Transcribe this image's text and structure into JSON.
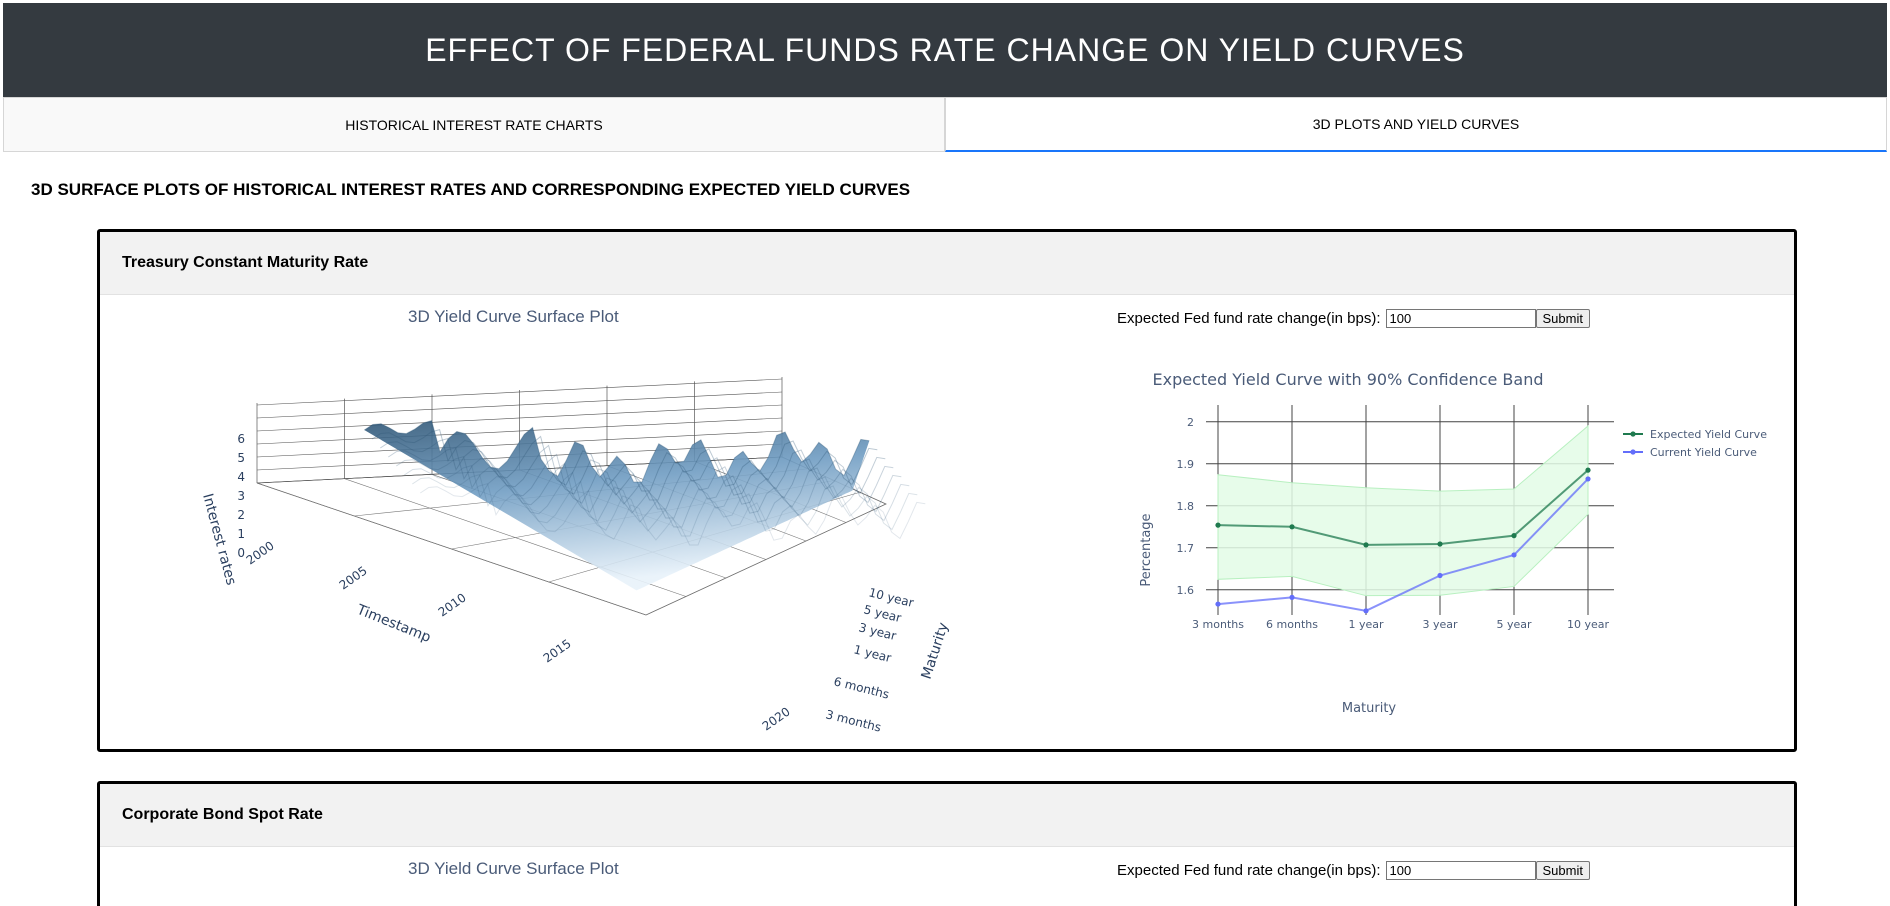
{
  "header": {
    "title": "EFFECT OF FEDERAL FUNDS RATE CHANGE ON YIELD CURVES"
  },
  "tabs": [
    {
      "label": "HISTORICAL INTEREST RATE CHARTS",
      "active": false
    },
    {
      "label": "3D PLOTS AND YIELD CURVES",
      "active": true
    }
  ],
  "main": {
    "heading": "3D SURFACE PLOTS OF HISTORICAL INTEREST RATES AND CORRESPONDING EXPECTED YIELD CURVES"
  },
  "cards": [
    {
      "title": "Treasury Constant Maturity Rate",
      "surface_title": "3D Yield Curve Surface Plot",
      "form_label": "Expected Fed fund rate change(in bps):",
      "input_value": "100",
      "submit_label": "Submit"
    },
    {
      "title": "Corporate Bond Spot Rate",
      "surface_title": "3D Yield Curve Surface Plot",
      "form_label": "Expected Fed fund rate change(in bps):",
      "input_value": "100",
      "submit_label": "Submit"
    }
  ],
  "surface": {
    "z_axis_title": "Interest rates",
    "z_ticks": [
      "6",
      "5",
      "4",
      "3",
      "2",
      "1",
      "0"
    ],
    "x_axis_title": "Timestamp",
    "x_ticks": [
      "2000",
      "2005",
      "2010",
      "2015",
      "2020"
    ],
    "y_axis_title": "Maturity",
    "y_ticks": [
      "10 year",
      "5 year",
      "3 year",
      "1 year",
      "6 months",
      "3 months"
    ],
    "colors": {
      "dark": "#2f5676",
      "mid": "#6f9cc2",
      "light": "#e8f2fa"
    }
  },
  "chart_data": {
    "type": "line",
    "title": "Expected Yield Curve with 90% Confidence Band",
    "xlabel": "Maturity",
    "ylabel": "Percentage",
    "categories": [
      "3 months",
      "6 months",
      "1 year",
      "3 year",
      "5 year",
      "10 year"
    ],
    "y_ticks": [
      "2",
      "1.9",
      "1.8",
      "1.7",
      "1.6"
    ],
    "ylim": [
      1.54,
      2.04
    ],
    "series": [
      {
        "name": "Expected Yield Curve",
        "color": "#1f7a4f",
        "values": [
          1.754,
          1.75,
          1.707,
          1.709,
          1.729,
          1.885
        ]
      },
      {
        "name": "Current Yield Curve",
        "color": "#636efa",
        "values": [
          1.566,
          1.582,
          1.55,
          1.634,
          1.683,
          1.864
        ]
      }
    ],
    "band": {
      "color": "#e3fbe6",
      "upper": [
        1.874,
        1.855,
        1.843,
        1.835,
        1.84,
        1.99
      ],
      "lower": [
        1.625,
        1.632,
        1.586,
        1.587,
        1.608,
        1.78
      ]
    },
    "legend": "top-right",
    "grid": true
  }
}
